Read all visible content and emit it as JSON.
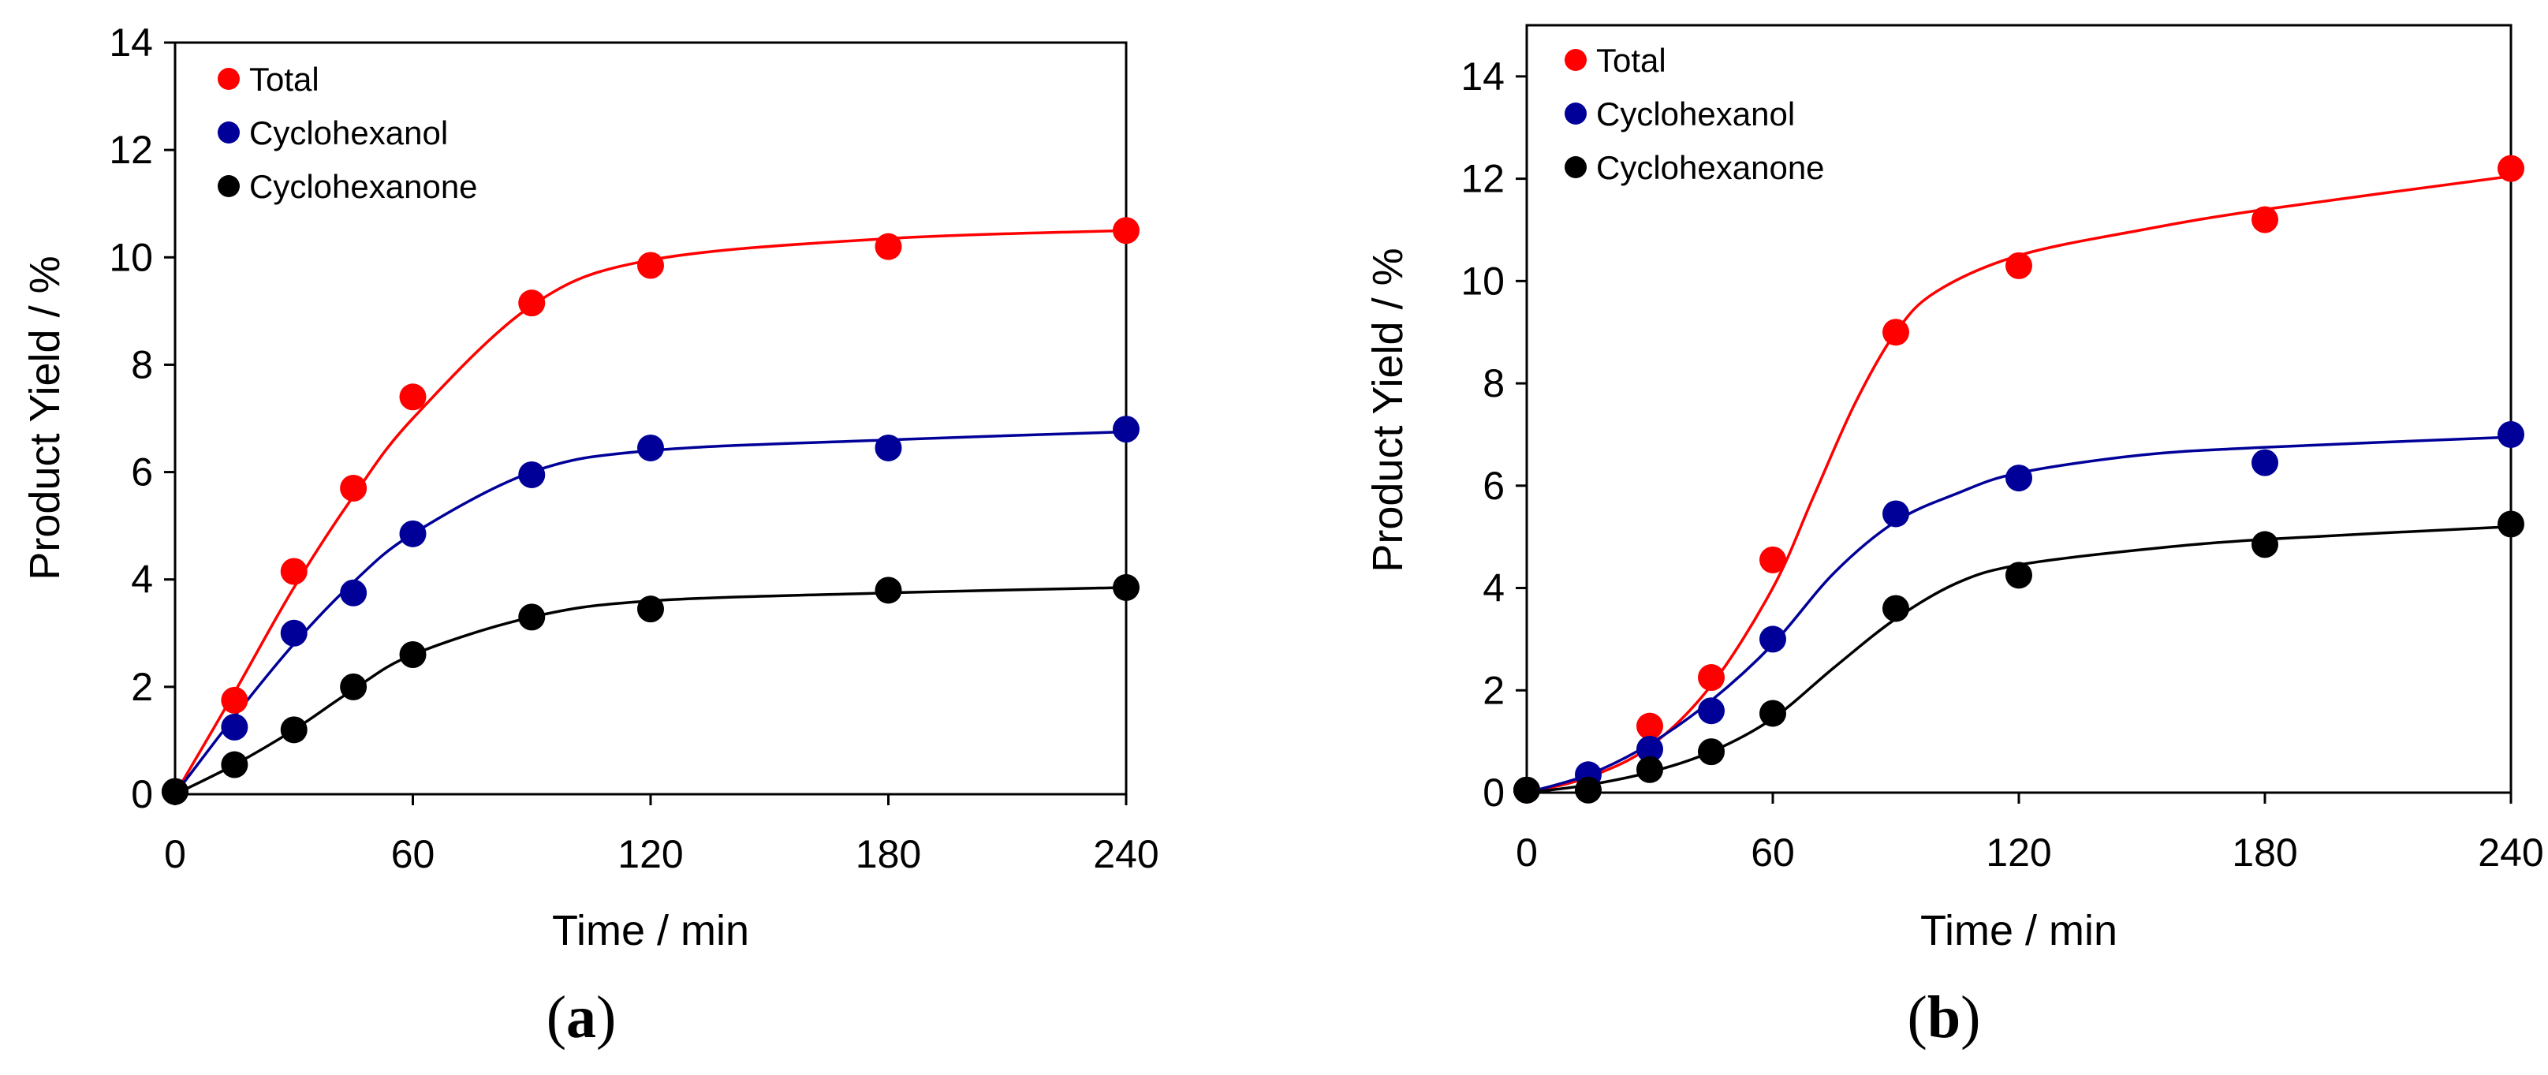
{
  "chart_data": [
    {
      "type": "scatter",
      "panel_label": "a",
      "xlabel": "Time / min",
      "ylabel": "Product Yield / %",
      "xlim": [
        0,
        240
      ],
      "ylim": [
        0,
        14
      ],
      "xticks": [
        0,
        60,
        120,
        180,
        240
      ],
      "yticks": [
        0,
        2,
        4,
        6,
        8,
        10,
        12,
        14
      ],
      "legend_position": "top-left",
      "grid": false,
      "series": [
        {
          "name": "Total",
          "color": "#ff0000",
          "x": [
            0,
            15,
            30,
            45,
            60,
            90,
            120,
            180,
            240
          ],
          "y": [
            0.05,
            1.75,
            4.15,
            5.7,
            7.4,
            9.15,
            9.85,
            10.2,
            10.5
          ],
          "fit_y": [
            0,
            1.9,
            3.85,
            5.55,
            7.0,
            9.1,
            9.95,
            10.35,
            10.5
          ]
        },
        {
          "name": "Cyclohexanol",
          "color": "#000099",
          "x": [
            0,
            15,
            30,
            45,
            60,
            90,
            120,
            180,
            240
          ],
          "y": [
            0.05,
            1.25,
            3.0,
            3.75,
            4.85,
            5.95,
            6.45,
            6.45,
            6.8
          ],
          "fit_y": [
            0,
            1.45,
            2.8,
            3.95,
            4.85,
            6.0,
            6.4,
            6.6,
            6.75
          ]
        },
        {
          "name": "Cyclohexanone",
          "color": "#000000",
          "x": [
            0,
            15,
            30,
            45,
            60,
            90,
            120,
            180,
            240
          ],
          "y": [
            0.05,
            0.55,
            1.2,
            2.0,
            2.6,
            3.3,
            3.45,
            3.8,
            3.85
          ],
          "fit_y": [
            0,
            0.55,
            1.2,
            1.95,
            2.6,
            3.3,
            3.6,
            3.75,
            3.85
          ]
        }
      ]
    },
    {
      "type": "scatter",
      "panel_label": "b",
      "xlabel": "Time / min",
      "ylabel": "Product Yield / %",
      "xlim": [
        0,
        240
      ],
      "ylim": [
        0,
        15
      ],
      "xticks": [
        0,
        60,
        120,
        180,
        240
      ],
      "yticks": [
        0,
        2,
        4,
        6,
        8,
        10,
        12,
        14
      ],
      "legend_position": "top-left",
      "grid": false,
      "series": [
        {
          "name": "Total",
          "color": "#ff0000",
          "x": [
            0,
            30,
            45,
            60,
            90,
            120,
            180,
            240
          ],
          "y": [
            0.05,
            1.3,
            2.25,
            4.55,
            9.0,
            10.3,
            11.2,
            12.2
          ],
          "fit_x": [
            0,
            15,
            30,
            45,
            60,
            70,
            80,
            90,
            100,
            120,
            150,
            180,
            240
          ],
          "fit_y": [
            0,
            0.3,
            0.9,
            2.1,
            4.0,
            5.8,
            7.6,
            9.0,
            9.8,
            10.5,
            11.0,
            11.4,
            12.05
          ]
        },
        {
          "name": "Cyclohexanol",
          "color": "#000099",
          "x": [
            0,
            15,
            30,
            45,
            60,
            90,
            120,
            180,
            240
          ],
          "y": [
            0.05,
            0.35,
            0.85,
            1.6,
            3.0,
            5.45,
            6.15,
            6.45,
            7.0
          ],
          "fit_x": [
            0,
            15,
            30,
            45,
            60,
            75,
            90,
            105,
            120,
            150,
            180,
            240
          ],
          "fit_y": [
            0,
            0.35,
            0.95,
            1.8,
            2.9,
            4.3,
            5.3,
            5.85,
            6.25,
            6.6,
            6.75,
            6.95
          ]
        },
        {
          "name": "Cyclohexanone",
          "color": "#000000",
          "x": [
            0,
            15,
            30,
            45,
            60,
            90,
            120,
            180,
            240
          ],
          "y": [
            0.05,
            0.05,
            0.45,
            0.8,
            1.55,
            3.6,
            4.25,
            4.85,
            5.25
          ],
          "fit_x": [
            0,
            15,
            30,
            45,
            60,
            75,
            90,
            105,
            120,
            150,
            180,
            240
          ],
          "fit_y": [
            0,
            0.15,
            0.4,
            0.8,
            1.45,
            2.45,
            3.4,
            4.1,
            4.45,
            4.75,
            4.95,
            5.2
          ]
        }
      ]
    }
  ]
}
